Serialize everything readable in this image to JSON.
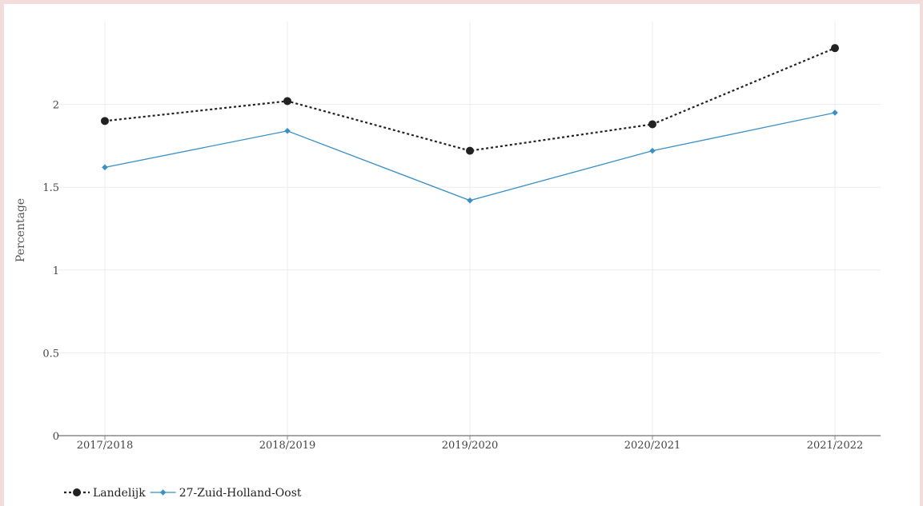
{
  "chart_data": {
    "type": "line",
    "title": "",
    "xlabel": "",
    "ylabel": "Percentage",
    "categories": [
      "2017/2018",
      "2018/2019",
      "2019/2020",
      "2020/2021",
      "2021/2022"
    ],
    "ylim": [
      0,
      2.5
    ],
    "yticks": [
      "0",
      "0.5",
      "1",
      "1.5",
      "2"
    ],
    "grid": true,
    "legend_position": "bottom-left",
    "series": [
      {
        "name": "Landelijk",
        "values": [
          1.9,
          2.02,
          1.72,
          1.88,
          2.34
        ],
        "color": "#222222",
        "line_style": "dotted",
        "marker": "circle"
      },
      {
        "name": "27-Zuid-Holland-Oost",
        "values": [
          1.62,
          1.84,
          1.42,
          1.72,
          1.95
        ],
        "color": "#3b8fc4",
        "line_style": "solid",
        "marker": "diamond"
      }
    ]
  }
}
